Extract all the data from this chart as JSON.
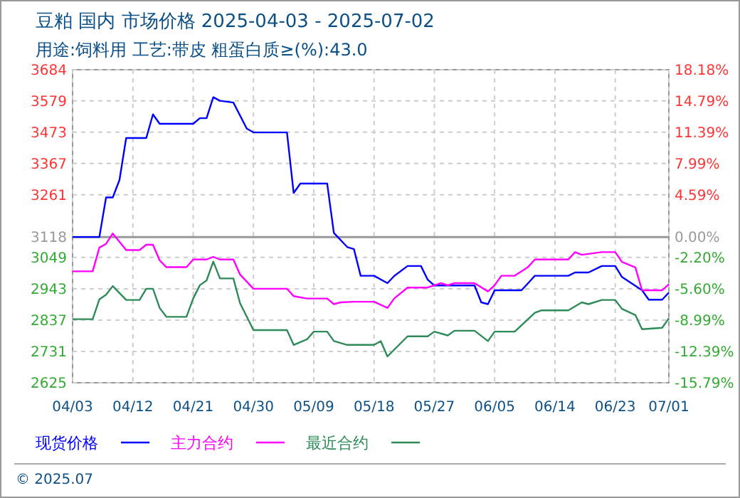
{
  "chart_data": {
    "type": "line",
    "title": "豆粕 国内 市场价格 2025-04-03 - 2025-07-02",
    "subtitle": "用途:饲料用 工艺:带皮 粗蛋白质≥(%):43.0",
    "annotations": [
      "© 2025.07"
    ],
    "xlim": [
      "2025-04-03",
      "2025-07-01"
    ],
    "xticks": [
      {
        "value": "2025-04-03",
        "label": "04/03"
      },
      {
        "value": "2025-04-12",
        "label": "04/12"
      },
      {
        "value": "2025-04-21",
        "label": "04/21"
      },
      {
        "value": "2025-04-30",
        "label": "04/30"
      },
      {
        "value": "2025-05-09",
        "label": "05/09"
      },
      {
        "value": "2025-05-18",
        "label": "05/18"
      },
      {
        "value": "2025-05-27",
        "label": "05/27"
      },
      {
        "value": "2025-06-05",
        "label": "06/05"
      },
      {
        "value": "2025-06-14",
        "label": "06/14"
      },
      {
        "value": "2025-06-23",
        "label": "06/23"
      },
      {
        "value": "2025-07-01",
        "label": "07/01"
      }
    ],
    "ylim": [
      2625,
      3684
    ],
    "yticks": [
      2625,
      2731,
      2837,
      2943,
      3049,
      3118,
      3261,
      3367,
      3473,
      3579,
      3684
    ],
    "y2lim": [
      -15.79,
      18.18
    ],
    "y2ticks": [
      {
        "value": -15.79,
        "label": "-15.79%"
      },
      {
        "value": -12.39,
        "label": "-12.39%"
      },
      {
        "value": -8.99,
        "label": "-8.99%"
      },
      {
        "value": -5.6,
        "label": "-5.60%"
      },
      {
        "value": -2.2,
        "label": "-2.20%"
      },
      {
        "value": 0,
        "label": "0.00%"
      },
      {
        "value": 4.59,
        "label": "4.59%"
      },
      {
        "value": 7.99,
        "label": "7.99%"
      },
      {
        "value": 11.39,
        "label": "11.39%"
      },
      {
        "value": 14.79,
        "label": "14.79%"
      },
      {
        "value": 18.18,
        "label": "18.18%"
      }
    ],
    "ref_lines": [
      {
        "axis": "y",
        "value": 3118,
        "color": "#999999"
      }
    ],
    "grid": true,
    "legend": "bottom",
    "line_style": "solid",
    "marker": "none",
    "series": [
      {
        "name": "现货价格",
        "color": "#0000ff",
        "x": [
          "2025-04-03",
          "2025-04-07",
          "2025-04-08",
          "2025-04-09",
          "2025-04-10",
          "2025-04-11",
          "2025-04-14",
          "2025-04-15",
          "2025-04-16",
          "2025-04-21",
          "2025-04-22",
          "2025-04-23",
          "2025-04-24",
          "2025-04-25",
          "2025-04-27",
          "2025-04-29",
          "2025-04-30",
          "2025-05-05",
          "2025-05-06",
          "2025-05-07",
          "2025-05-11",
          "2025-05-12",
          "2025-05-14",
          "2025-05-15",
          "2025-05-16",
          "2025-05-18",
          "2025-05-20",
          "2025-05-21",
          "2025-05-23",
          "2025-05-25",
          "2025-05-26",
          "2025-05-27",
          "2025-06-02",
          "2025-06-03",
          "2025-06-04",
          "2025-06-05",
          "2025-06-09",
          "2025-06-10",
          "2025-06-11",
          "2025-06-16",
          "2025-06-17",
          "2025-06-19",
          "2025-06-21",
          "2025-06-23",
          "2025-06-24",
          "2025-06-27",
          "2025-06-28",
          "2025-06-30",
          "2025-07-01"
        ],
        "values": [
          3118,
          3118,
          3252,
          3252,
          3311,
          3453,
          3453,
          3533,
          3501,
          3501,
          3520,
          3520,
          3591,
          3579,
          3573,
          3485,
          3472,
          3472,
          3267,
          3299,
          3299,
          3132,
          3084,
          3077,
          2987,
          2987,
          2962,
          2986,
          3020,
          3020,
          2974,
          2954,
          2954,
          2897,
          2891,
          2938,
          2938,
          2962,
          2987,
          2987,
          2998,
          2998,
          3020,
          3020,
          2983,
          2938,
          2906,
          2906,
          2930
        ]
      },
      {
        "name": "主力合约",
        "color": "#ff00ff",
        "x": [
          "2025-04-03",
          "2025-04-06",
          "2025-04-07",
          "2025-04-08",
          "2025-04-09",
          "2025-04-11",
          "2025-04-13",
          "2025-04-14",
          "2025-04-15",
          "2025-04-16",
          "2025-04-17",
          "2025-04-20",
          "2025-04-21",
          "2025-04-23",
          "2025-04-24",
          "2025-04-25",
          "2025-04-27",
          "2025-04-28",
          "2025-04-30",
          "2025-05-05",
          "2025-05-06",
          "2025-05-08",
          "2025-05-11",
          "2025-05-12",
          "2025-05-13",
          "2025-05-15",
          "2025-05-18",
          "2025-05-20",
          "2025-05-21",
          "2025-05-23",
          "2025-05-26",
          "2025-05-28",
          "2025-05-29",
          "2025-05-30",
          "2025-06-02",
          "2025-06-04",
          "2025-06-05",
          "2025-06-06",
          "2025-06-08",
          "2025-06-10",
          "2025-06-11",
          "2025-06-16",
          "2025-06-17",
          "2025-06-18",
          "2025-06-21",
          "2025-06-23",
          "2025-06-24",
          "2025-06-26",
          "2025-06-27",
          "2025-06-30",
          "2025-07-01"
        ],
        "values": [
          3002,
          3002,
          3082,
          3095,
          3130,
          3074,
          3074,
          3092,
          3092,
          3039,
          3016,
          3016,
          3042,
          3042,
          3051,
          3042,
          3042,
          2991,
          2943,
          2943,
          2918,
          2910,
          2910,
          2891,
          2897,
          2899,
          2899,
          2878,
          2910,
          2947,
          2947,
          2962,
          2955,
          2962,
          2962,
          2934,
          2955,
          2987,
          2987,
          3017,
          3042,
          3042,
          3067,
          3058,
          3067,
          3067,
          3034,
          3015,
          2938,
          2938,
          2958
        ]
      },
      {
        "name": "最近合约",
        "color": "#2e8b57",
        "x": [
          "2025-04-03",
          "2025-04-06",
          "2025-04-07",
          "2025-04-08",
          "2025-04-09",
          "2025-04-11",
          "2025-04-13",
          "2025-04-14",
          "2025-04-15",
          "2025-04-16",
          "2025-04-17",
          "2025-04-20",
          "2025-04-21",
          "2025-04-22",
          "2025-04-23",
          "2025-04-24",
          "2025-04-25",
          "2025-04-27",
          "2025-04-28",
          "2025-04-30",
          "2025-05-05",
          "2025-05-06",
          "2025-05-08",
          "2025-05-09",
          "2025-05-11",
          "2025-05-12",
          "2025-05-14",
          "2025-05-18",
          "2025-05-19",
          "2025-05-20",
          "2025-05-23",
          "2025-05-26",
          "2025-05-27",
          "2025-05-29",
          "2025-05-30",
          "2025-06-02",
          "2025-06-04",
          "2025-06-05",
          "2025-06-08",
          "2025-06-11",
          "2025-06-12",
          "2025-06-16",
          "2025-06-18",
          "2025-06-19",
          "2025-06-21",
          "2025-06-23",
          "2025-06-24",
          "2025-06-26",
          "2025-06-27",
          "2025-06-30",
          "2025-07-01"
        ],
        "values": [
          2840,
          2840,
          2907,
          2923,
          2952,
          2905,
          2905,
          2943,
          2943,
          2878,
          2848,
          2848,
          2910,
          2955,
          2971,
          3035,
          2978,
          2978,
          2894,
          2803,
          2803,
          2753,
          2772,
          2798,
          2798,
          2766,
          2753,
          2753,
          2766,
          2714,
          2782,
          2782,
          2798,
          2785,
          2801,
          2801,
          2766,
          2798,
          2798,
          2862,
          2870,
          2870,
          2897,
          2891,
          2905,
          2905,
          2875,
          2854,
          2806,
          2811,
          2843
        ]
      }
    ]
  }
}
